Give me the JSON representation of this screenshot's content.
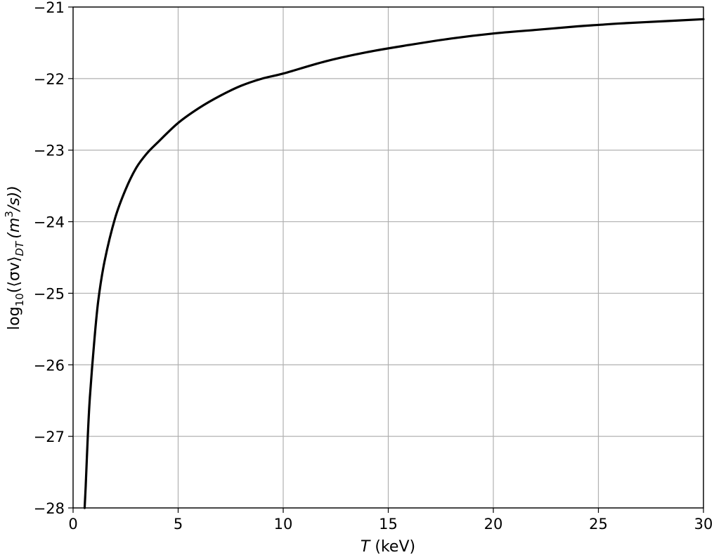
{
  "chart_data": {
    "type": "line",
    "title": "",
    "xlabel_var": "T",
    "xlabel_unit": " (keV)",
    "ylabel_prefix": "log",
    "ylabel_sub1": "10",
    "ylabel_mid": "(⟨σv⟩",
    "ylabel_sub2": "DT",
    "ylabel_unit_open": "(m",
    "ylabel_sup": "3",
    "ylabel_unit_close": "/s))",
    "xlim": [
      0,
      30
    ],
    "ylim": [
      -28,
      -21
    ],
    "xticks": [
      0,
      5,
      10,
      15,
      20,
      25,
      30
    ],
    "xtick_labels": [
      "0",
      "5",
      "10",
      "15",
      "20",
      "25",
      "30"
    ],
    "yticks": [
      -28,
      -27,
      -26,
      -25,
      -24,
      -23,
      -22,
      -21
    ],
    "ytick_labels": [
      "−28",
      "−27",
      "−26",
      "−25",
      "−24",
      "−23",
      "−22",
      "−21"
    ],
    "grid": true,
    "line_color": "#000000",
    "grid_color": "#b0b0b0",
    "series": [
      {
        "x": [
          0.55,
          0.6,
          0.7,
          0.8,
          1.0,
          1.2,
          1.5,
          2.0,
          2.5,
          3.0,
          3.5,
          4.0,
          5.0,
          6.0,
          7.0,
          8.0,
          9.0,
          10.0,
          12.0,
          14.0,
          16.0,
          18.0,
          20.0,
          22.0,
          24.0,
          25.0,
          26.0,
          28.0,
          30.0
        ],
        "y": [
          -28.0,
          -27.7,
          -27.0,
          -26.45,
          -25.7,
          -25.1,
          -24.55,
          -23.95,
          -23.55,
          -23.25,
          -23.05,
          -22.9,
          -22.62,
          -22.41,
          -22.24,
          -22.1,
          -22.0,
          -21.93,
          -21.76,
          -21.63,
          -21.53,
          -21.44,
          -21.37,
          -21.32,
          -21.27,
          -21.25,
          -21.23,
          -21.2,
          -21.17
        ]
      }
    ]
  }
}
